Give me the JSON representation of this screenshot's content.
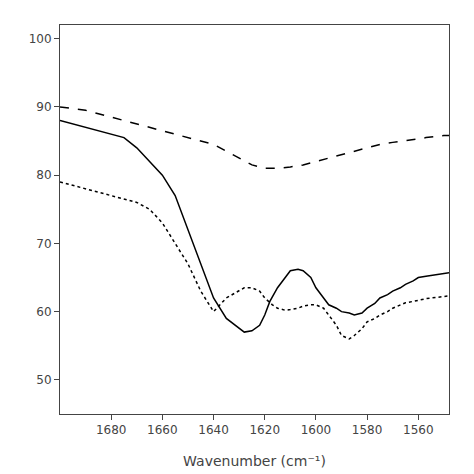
{
  "chart_data": {
    "type": "line",
    "xlabel": "Wavenumber (cm⁻¹)",
    "xlim": [
      1700,
      1548
    ],
    "ylim": [
      45,
      102
    ],
    "xticks": [
      1680,
      1660,
      1640,
      1620,
      1600,
      1580,
      1560
    ],
    "yticks": [
      50,
      60,
      70,
      80,
      90,
      100
    ],
    "grid": false,
    "series": [
      {
        "color": "#000000",
        "line_style": "solid",
        "x": [
          1700,
          1695,
          1690,
          1685,
          1680,
          1675,
          1670,
          1665,
          1660,
          1655,
          1650,
          1645,
          1640,
          1635,
          1630,
          1628,
          1625,
          1622,
          1620,
          1618,
          1615,
          1612,
          1610,
          1607,
          1605,
          1602,
          1600,
          1597,
          1595,
          1592,
          1590,
          1587,
          1585,
          1582,
          1580,
          1577,
          1575,
          1572,
          1570,
          1567,
          1565,
          1562,
          1560,
          1557,
          1555,
          1552,
          1550,
          1548
        ],
        "values": [
          88,
          87.5,
          87,
          86.5,
          86,
          85.5,
          84,
          82,
          80,
          77,
          72,
          67,
          62,
          59,
          57.5,
          57,
          57.2,
          58,
          59.5,
          61.5,
          63.5,
          65,
          66,
          66.2,
          66,
          65,
          63.5,
          62,
          61,
          60.5,
          60,
          59.8,
          59.5,
          59.8,
          60.5,
          61.2,
          62,
          62.5,
          63,
          63.5,
          64,
          64.5,
          65,
          65.2,
          65.3,
          65.5,
          65.6,
          65.7
        ]
      },
      {
        "color": "#000000",
        "line_style": "dashed",
        "x": [
          1700,
          1695,
          1690,
          1685,
          1680,
          1675,
          1670,
          1665,
          1660,
          1655,
          1650,
          1645,
          1640,
          1635,
          1630,
          1625,
          1620,
          1615,
          1610,
          1605,
          1600,
          1595,
          1590,
          1585,
          1580,
          1575,
          1570,
          1565,
          1560,
          1557,
          1555,
          1552,
          1550,
          1548
        ],
        "values": [
          90,
          89.8,
          89.5,
          89,
          88.5,
          88,
          87.5,
          87,
          86.5,
          86,
          85.5,
          85,
          84.5,
          83.5,
          82.5,
          81.5,
          81,
          81,
          81.2,
          81.5,
          82,
          82.5,
          83,
          83.5,
          84,
          84.5,
          84.8,
          85,
          85.3,
          85.5,
          85.6,
          85.7,
          85.8,
          85.8
        ]
      },
      {
        "color": "#000000",
        "line_style": "dotted",
        "x": [
          1700,
          1695,
          1690,
          1685,
          1680,
          1675,
          1670,
          1665,
          1660,
          1655,
          1650,
          1645,
          1640,
          1635,
          1630,
          1628,
          1625,
          1622,
          1620,
          1617,
          1615,
          1612,
          1610,
          1607,
          1605,
          1602,
          1600,
          1597,
          1595,
          1592,
          1590,
          1587,
          1585,
          1582,
          1580,
          1577,
          1575,
          1572,
          1570,
          1567,
          1565,
          1562,
          1560,
          1557,
          1555,
          1552,
          1550,
          1548
        ],
        "values": [
          79,
          78.5,
          78,
          77.5,
          77,
          76.5,
          76,
          75,
          73,
          70,
          67,
          63,
          60,
          62,
          63,
          63.5,
          63.5,
          63,
          62,
          61,
          60.5,
          60.2,
          60.3,
          60.5,
          60.8,
          61,
          61,
          60.5,
          59.5,
          58,
          56.5,
          56,
          56.5,
          57.5,
          58.5,
          59,
          59.5,
          60,
          60.5,
          61,
          61.3,
          61.5,
          61.7,
          61.9,
          62,
          62.1,
          62.2,
          62.3
        ]
      }
    ]
  }
}
